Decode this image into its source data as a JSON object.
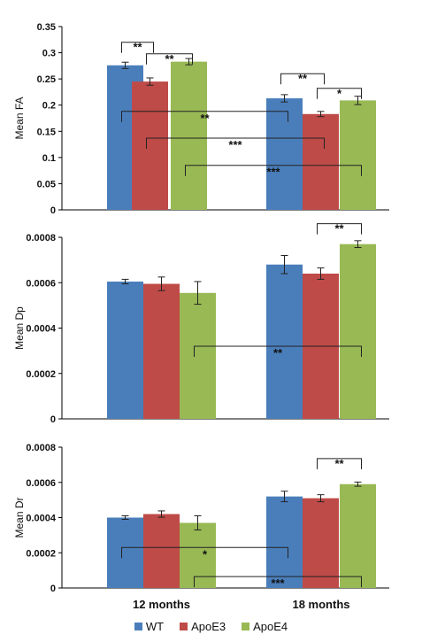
{
  "chart_data": [
    {
      "type": "bar",
      "ylabel": "Mean FA",
      "categories": [
        "12 months",
        "18 months"
      ],
      "series": [
        {
          "name": "WT",
          "values": [
            0.276,
            0.213
          ],
          "errors": [
            0.006,
            0.007
          ]
        },
        {
          "name": "ApoE3",
          "values": [
            0.245,
            0.183
          ],
          "errors": [
            0.007,
            0.005
          ]
        },
        {
          "name": "ApoE4",
          "values": [
            0.283,
            0.209
          ],
          "errors": [
            0.006,
            0.008
          ]
        }
      ],
      "ylim": [
        0,
        0.35
      ],
      "yticks": [
        "0",
        "0.05",
        "0.1",
        "0.15",
        "0.2",
        "0.25",
        "0.3",
        "0.35"
      ],
      "annotations": [
        {
          "text": "**"
        },
        {
          "text": "**"
        },
        {
          "text": "**"
        },
        {
          "text": "*"
        },
        {
          "text": "**"
        },
        {
          "text": "***"
        },
        {
          "text": "***"
        }
      ]
    },
    {
      "type": "bar",
      "ylabel": "Mean Dp",
      "categories": [
        "12 months",
        "18 months"
      ],
      "series": [
        {
          "name": "WT",
          "values": [
            0.000605,
            0.00068
          ],
          "errors": [
            1e-05,
            4e-05
          ]
        },
        {
          "name": "ApoE3",
          "values": [
            0.000595,
            0.00064
          ],
          "errors": [
            3e-05,
            2.5e-05
          ]
        },
        {
          "name": "ApoE4",
          "values": [
            0.000555,
            0.00077
          ],
          "errors": [
            5e-05,
            1.5e-05
          ]
        }
      ],
      "ylim": [
        0,
        0.0008
      ],
      "yticks": [
        "0",
        "0.0002",
        "0.0004",
        "0.0006",
        "0.0008"
      ],
      "annotations": [
        {
          "text": "**"
        },
        {
          "text": "**"
        }
      ]
    },
    {
      "type": "bar",
      "ylabel": "Mean Dr",
      "categories": [
        "12 months",
        "18 months"
      ],
      "series": [
        {
          "name": "WT",
          "values": [
            0.0004,
            0.00052
          ],
          "errors": [
            1e-05,
            3e-05
          ]
        },
        {
          "name": "ApoE3",
          "values": [
            0.00042,
            0.00051
          ],
          "errors": [
            1.8e-05,
            2e-05
          ]
        },
        {
          "name": "ApoE4",
          "values": [
            0.00037,
            0.00059
          ],
          "errors": [
            4e-05,
            1.2e-05
          ]
        }
      ],
      "ylim": [
        0,
        0.0008
      ],
      "yticks": [
        "0",
        "0.0002",
        "0.0004",
        "0.0006",
        "0.0008"
      ],
      "annotations": [
        {
          "text": "**"
        },
        {
          "text": "*"
        },
        {
          "text": "***"
        }
      ]
    }
  ],
  "colors": {
    "WT": "#4a7ebb",
    "ApoE3": "#be4b48",
    "ApoE4": "#98b954"
  },
  "legend": [
    "WT",
    "ApoE3",
    "ApoE4"
  ]
}
